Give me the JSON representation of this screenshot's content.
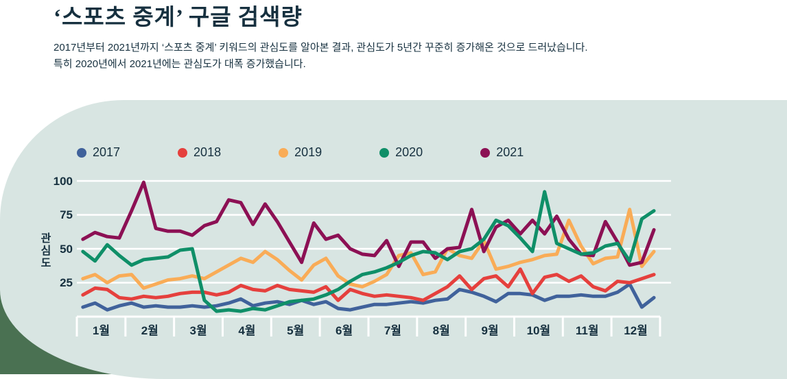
{
  "header": {
    "title": "‘스포츠 중계’ 구글 검색량",
    "subtitle_line1": "2017년부터 2021년까지 ‘스포츠 중계’ 키워드의 관심도를 알아본 결과, 관심도가 5년간 꾸준히 증가해온 것으로 드러났습니다.",
    "subtitle_line2": "특히 2020년에서 2021년에는 관심도가 대폭 증가했습니다."
  },
  "colors": {
    "page_background": "#ffffff",
    "panel_background": "#d8e5e2",
    "corner_accent": "#4a7152",
    "text_dark": "#16303f",
    "gridline": "#ffffff"
  },
  "chart_data": {
    "type": "line",
    "ylabel": "관심도",
    "ylim": [
      0,
      100
    ],
    "yticks": [
      100,
      75,
      50,
      25
    ],
    "grid": "horizontal white lines on light panel",
    "legend_position": "top",
    "categories": [
      "1월",
      "2월",
      "3월",
      "4월",
      "5월",
      "6월",
      "7월",
      "8월",
      "9월",
      "10월",
      "11월",
      "12월"
    ],
    "points_per_month": 4,
    "series": [
      {
        "name": "2017",
        "color": "#40629b",
        "values": [
          7,
          10,
          5,
          8,
          10,
          7,
          8,
          7,
          7,
          8,
          7,
          8,
          10,
          13,
          8,
          10,
          11,
          9,
          12,
          9,
          11,
          6,
          5,
          7,
          9,
          9,
          10,
          11,
          10,
          12,
          13,
          20,
          18,
          15,
          11,
          17,
          17,
          16,
          12,
          15,
          15,
          16,
          15,
          15,
          18,
          24,
          7,
          14
        ]
      },
      {
        "name": "2018",
        "color": "#e5403d",
        "values": [
          16,
          21,
          20,
          14,
          13,
          15,
          14,
          15,
          17,
          18,
          18,
          16,
          18,
          23,
          20,
          19,
          23,
          20,
          19,
          18,
          22,
          12,
          20,
          17,
          15,
          16,
          15,
          14,
          12,
          17,
          22,
          30,
          20,
          28,
          30,
          22,
          35,
          17,
          29,
          31,
          26,
          30,
          22,
          19,
          26,
          25,
          28,
          31
        ]
      },
      {
        "name": "2019",
        "color": "#f9ac57",
        "values": [
          28,
          31,
          25,
          30,
          31,
          21,
          24,
          27,
          28,
          30,
          28,
          33,
          38,
          43,
          40,
          48,
          42,
          34,
          27,
          38,
          43,
          30,
          24,
          22,
          26,
          31,
          45,
          47,
          31,
          33,
          50,
          45,
          43,
          56,
          35,
          37,
          40,
          42,
          45,
          46,
          71,
          52,
          39,
          43,
          44,
          79,
          37,
          48
        ]
      },
      {
        "name": "2020",
        "color": "#0f8f68",
        "values": [
          48,
          41,
          53,
          45,
          38,
          42,
          43,
          44,
          49,
          50,
          12,
          4,
          5,
          4,
          6,
          5,
          8,
          11,
          12,
          13,
          16,
          20,
          26,
          31,
          33,
          36,
          40,
          45,
          48,
          47,
          42,
          48,
          50,
          57,
          71,
          67,
          58,
          48,
          92,
          54,
          50,
          46,
          47,
          52,
          54,
          41,
          72,
          78
        ]
      },
      {
        "name": "2021",
        "color": "#8c1054",
        "values": [
          57,
          62,
          59,
          58,
          78,
          99,
          65,
          63,
          63,
          60,
          67,
          70,
          86,
          84,
          68,
          83,
          70,
          55,
          40,
          69,
          57,
          60,
          50,
          46,
          45,
          56,
          37,
          55,
          55,
          43,
          50,
          51,
          79,
          48,
          66,
          71,
          61,
          71,
          61,
          74,
          57,
          46,
          45,
          70,
          55,
          38,
          40,
          64
        ]
      }
    ]
  }
}
